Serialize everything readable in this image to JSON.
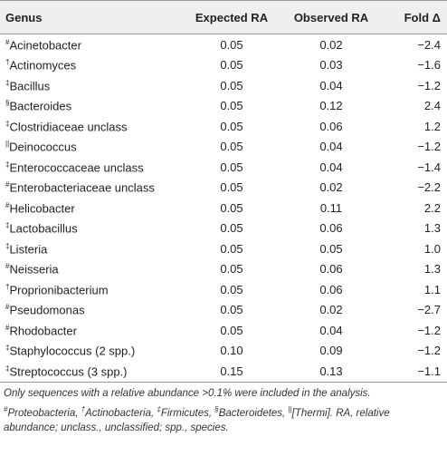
{
  "table": {
    "header": [
      "Genus",
      "Expected RA",
      "Observed RA",
      "Fold Δ"
    ],
    "rows": [
      [
        "#",
        "Acinetobacter",
        "0.05",
        "0.02",
        "−2.4"
      ],
      [
        "†",
        "Actinomyces",
        "0.05",
        "0.03",
        "−1.6"
      ],
      [
        "‡",
        "Bacillus",
        "0.05",
        "0.04",
        "−1.2"
      ],
      [
        "§",
        "Bacteroides",
        "0.05",
        "0.12",
        "2.4"
      ],
      [
        "‡",
        "Clostridiaceae unclass",
        "0.05",
        "0.06",
        "1.2"
      ],
      [
        "||",
        "Deinococcus",
        "0.05",
        "0.04",
        "−1.2"
      ],
      [
        "‡",
        "Enterococcaceae unclass",
        "0.05",
        "0.04",
        "−1.4"
      ],
      [
        "#",
        "Enterobacteriaceae unclass",
        "0.05",
        "0.02",
        "−2.2"
      ],
      [
        "#",
        "Helicobacter",
        "0.05",
        "0.11",
        "2.2"
      ],
      [
        "‡",
        "Lactobacillus",
        "0.05",
        "0.06",
        "1.3"
      ],
      [
        "‡",
        "Listeria",
        "0.05",
        "0.05",
        "1.0"
      ],
      [
        "#",
        "Neisseria",
        "0.05",
        "0.06",
        "1.3"
      ],
      [
        "†",
        "Proprionibacterium",
        "0.05",
        "0.06",
        "1.1"
      ],
      [
        "#",
        "Pseudomonas",
        "0.05",
        "0.02",
        "−2.7"
      ],
      [
        "#",
        "Rhodobacter",
        "0.05",
        "0.04",
        "−1.2"
      ],
      [
        "‡",
        "Staphylococcus (2 spp.)",
        "0.10",
        "0.09",
        "−1.2"
      ],
      [
        "‡",
        "Streptococcus (3 spp.)",
        "0.15",
        "0.13",
        "−1.1"
      ]
    ]
  },
  "footnote": {
    "note": "Only sequences with a relative abundance >0.1% were included in the analysis.",
    "legend": [
      {
        "mark": "#",
        "text": "Proteobacteria,"
      },
      {
        "mark": "†",
        "text": "Actinobacteria,"
      },
      {
        "mark": "‡",
        "text": "Firmicutes,"
      },
      {
        "mark": "§",
        "text": "Bacteroidetes,"
      },
      {
        "mark": "||",
        "text": "[Thermi]."
      }
    ],
    "abbreviations": "RA, relative abundance; unclass., unclassified; spp., species."
  }
}
